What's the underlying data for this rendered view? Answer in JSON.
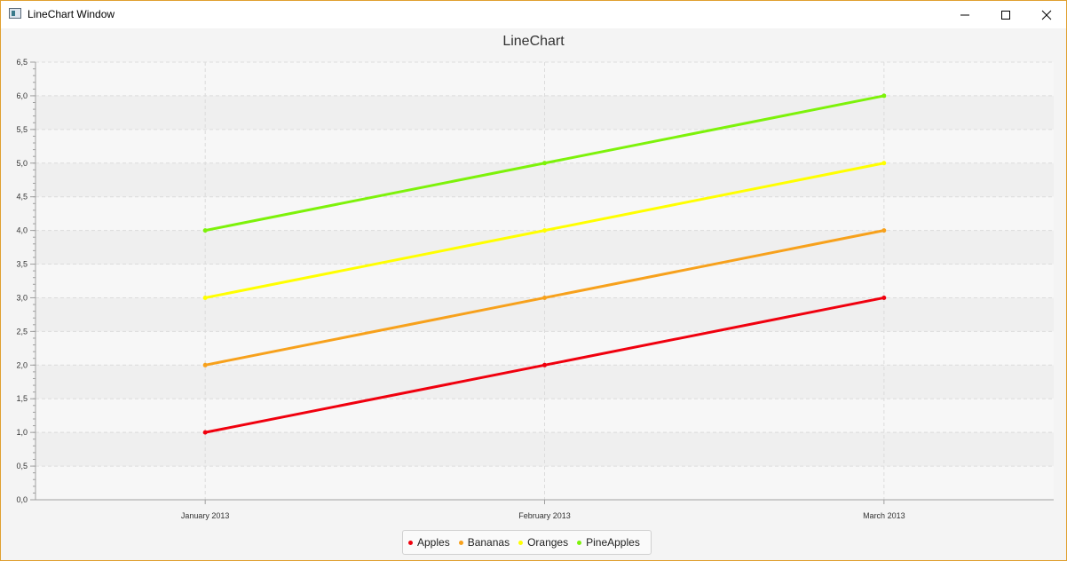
{
  "window": {
    "title": "LineChart Window"
  },
  "chart_data": {
    "type": "line",
    "title": "LineChart",
    "categories": [
      "January 2013",
      "February 2013",
      "March 2013"
    ],
    "ylim": [
      0,
      6.5
    ],
    "yticks": [
      "0,0",
      "0,5",
      "1,0",
      "1,5",
      "2,0",
      "2,5",
      "3,0",
      "3,5",
      "4,0",
      "4,5",
      "5,0",
      "5,5",
      "6,0",
      "6,5"
    ],
    "grid": true,
    "legend_position": "bottom",
    "series": [
      {
        "name": "Apples",
        "values": [
          1,
          2,
          3
        ],
        "color": "#f0000e"
      },
      {
        "name": "Bananas",
        "values": [
          2,
          3,
          4
        ],
        "color": "#f7a11c"
      },
      {
        "name": "Oranges",
        "values": [
          3,
          4,
          5
        ],
        "color": "#ffff00"
      },
      {
        "name": "PineApples",
        "values": [
          4,
          5,
          6
        ],
        "color": "#7df20a"
      }
    ]
  }
}
